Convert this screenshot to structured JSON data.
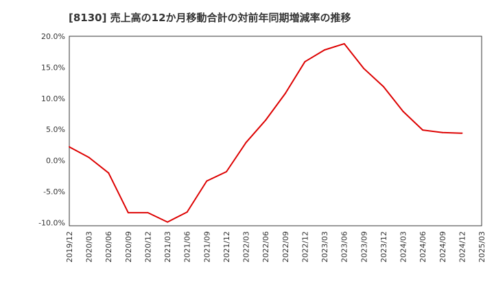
{
  "chart_data": {
    "type": "line",
    "title": "[8130]  売上高の12か月移動合計の対前年同期増減率の推移",
    "xlabel": "",
    "ylabel": "",
    "ylim": [
      -10.5,
      20.0
    ],
    "y_ticks": [
      -10.0,
      -5.0,
      0.0,
      5.0,
      10.0,
      15.0,
      20.0
    ],
    "y_tick_labels": [
      "-10.0%",
      "-5.0%",
      "0.0%",
      "5.0%",
      "10.0%",
      "15.0%",
      "20.0%"
    ],
    "x_tick_labels": [
      "2019/12",
      "2020/03",
      "2020/06",
      "2020/09",
      "2020/12",
      "2021/03",
      "2021/06",
      "2021/09",
      "2021/12",
      "2022/03",
      "2022/06",
      "2022/09",
      "2022/12",
      "2023/03",
      "2023/06",
      "2023/09",
      "2023/12",
      "2024/03",
      "2024/06",
      "2024/09",
      "2024/12",
      "2025/03"
    ],
    "grid": true,
    "series": [
      {
        "name": "増減率",
        "color": "#dd0000",
        "x": [
          "2019/12",
          "2020/03",
          "2020/06",
          "2020/09",
          "2020/12",
          "2021/03",
          "2021/06",
          "2021/09",
          "2021/12",
          "2022/03",
          "2022/06",
          "2022/09",
          "2022/12",
          "2023/03",
          "2023/06",
          "2023/09",
          "2023/12",
          "2024/03",
          "2024/06",
          "2024/09",
          "2024/12"
        ],
        "values": [
          2.2,
          0.5,
          -2.0,
          -8.4,
          -8.4,
          -9.9,
          -8.3,
          -3.3,
          -1.8,
          2.9,
          6.5,
          10.8,
          15.9,
          17.8,
          18.8,
          14.8,
          11.9,
          7.9,
          4.9,
          4.5,
          4.4
        ]
      }
    ]
  }
}
